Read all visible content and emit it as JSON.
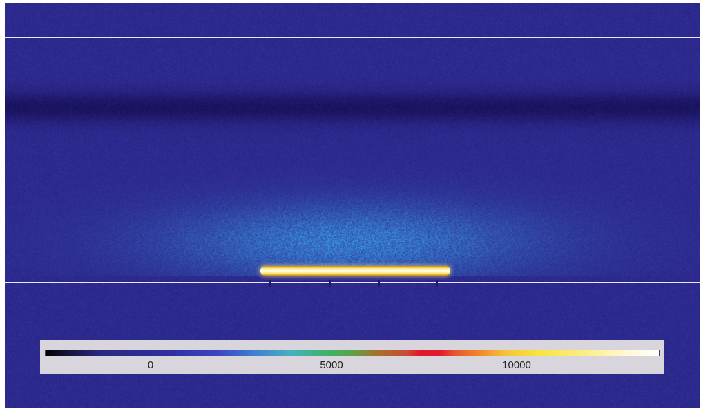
{
  "colorbar": {
    "labels": [
      "0",
      "5000",
      "10000"
    ]
  }
}
